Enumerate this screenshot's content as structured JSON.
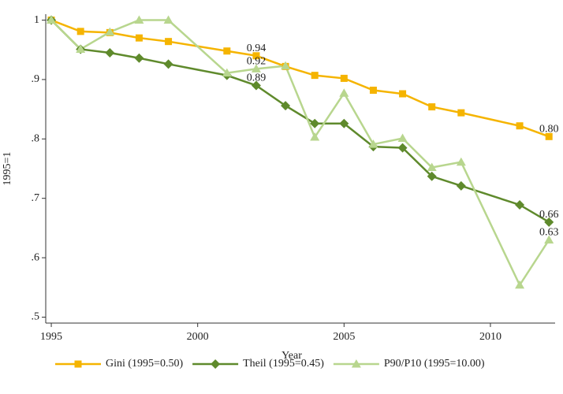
{
  "chart_data": {
    "type": "line",
    "x_label": "Year",
    "y_label": "1995=1",
    "x": [
      1995,
      1996,
      1997,
      1998,
      1999,
      2001,
      2002,
      2003,
      2004,
      2005,
      2006,
      2007,
      2008,
      2009,
      2011,
      2012
    ],
    "series": [
      {
        "name": "Gini (1995=0.50)",
        "color": "#f5b400",
        "marker": "square",
        "values": [
          1.0,
          0.981,
          0.979,
          0.97,
          0.964,
          0.948,
          0.94,
          0.922,
          0.907,
          0.902,
          0.882,
          0.876,
          0.854,
          0.844,
          0.822,
          0.804
        ],
        "value_labels": [
          null,
          null,
          null,
          null,
          null,
          null,
          "0.94",
          null,
          null,
          null,
          null,
          null,
          null,
          null,
          null,
          "0.80"
        ]
      },
      {
        "name": "Theil (1995=0.45)",
        "color": "#5f8a2c",
        "marker": "diamond",
        "values": [
          1.0,
          0.951,
          0.945,
          0.936,
          0.926,
          0.907,
          0.89,
          0.856,
          0.826,
          0.826,
          0.787,
          0.785,
          0.737,
          0.721,
          0.689,
          0.66
        ],
        "value_labels": [
          null,
          null,
          null,
          null,
          null,
          null,
          "0.89",
          null,
          null,
          null,
          null,
          null,
          null,
          null,
          null,
          "0.66"
        ]
      },
      {
        "name": "P90/P10 (1995=10.00)",
        "color": "#b8d68e",
        "marker": "triangle",
        "values": [
          1.0,
          0.951,
          0.98,
          1.0,
          1.0,
          0.911,
          0.918,
          0.923,
          0.803,
          0.877,
          0.791,
          0.801,
          0.752,
          0.761,
          0.554,
          0.63
        ],
        "value_labels": [
          null,
          null,
          null,
          null,
          null,
          null,
          "0.92",
          null,
          null,
          null,
          null,
          null,
          null,
          null,
          null,
          "0.63"
        ]
      }
    ],
    "xlim": [
      1994.81,
      2012.21
    ],
    "ylim": [
      0.49,
      1.01
    ],
    "xticks": [
      1995,
      2000,
      2005,
      2010
    ],
    "yticks": [
      {
        "value": 0.5,
        "label": ".5"
      },
      {
        "value": 0.6,
        "label": ".6"
      },
      {
        "value": 0.7,
        "label": ".7"
      },
      {
        "value": 0.8,
        "label": ".8"
      },
      {
        "value": 0.9,
        "label": ".9"
      },
      1
    ],
    "grid": false,
    "legend": "bottom"
  }
}
